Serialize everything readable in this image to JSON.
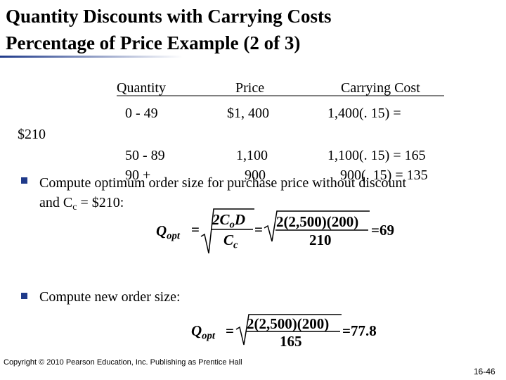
{
  "title": [
    "Quantity Discounts with Carrying Costs",
    "Percentage of Price Example (2 of 3)"
  ],
  "table": {
    "headers": [
      "Quantity",
      "Price",
      "Carrying Cost"
    ],
    "rows": [
      [
        "0 - 49",
        "$1, 400",
        "1,400(. 15) ="
      ],
      [
        "50 - 89",
        "1,100",
        "1,100(. 15) = 165"
      ],
      [
        "90 +",
        "900",
        "900(. 15) = 135"
      ]
    ],
    "stray": "$210"
  },
  "bullets": [
    {
      "line1": "Compute optimum order size for purchase price without discount",
      "line2": [
        "and C",
        "c",
        " = $210:"
      ]
    },
    {
      "line1": "Compute new order size:"
    }
  ],
  "formula1": {
    "q": "Q",
    "q_sub": "opt",
    "eq1": "=",
    "num1": [
      "2C",
      "o",
      "D"
    ],
    "den1": [
      "C",
      "c"
    ],
    "eq2": "=",
    "num2": "2(2,500)(200)",
    "den2": "210",
    "result": "=69"
  },
  "formula2": {
    "q": "Q",
    "q_sub": "opt",
    "eq1": "=",
    "num": "2(2,500)(200)",
    "den": "165",
    "result": "=77.8"
  },
  "footer": {
    "copyright": "Copyright © 2010 Pearson Education, Inc. Publishing as Prentice Hall",
    "page": "16-46"
  }
}
